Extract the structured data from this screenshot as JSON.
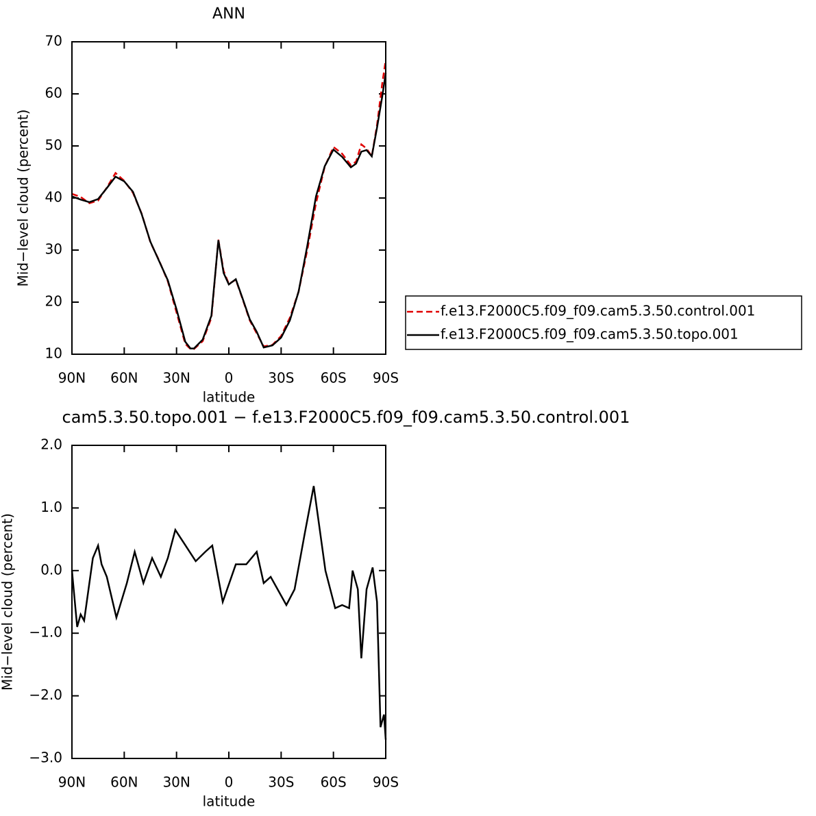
{
  "chart_data": [
    {
      "type": "line",
      "title": "ANN",
      "xlabel": "latitude",
      "ylabel": "Mid−level cloud (percent)",
      "x": [
        90,
        85,
        80,
        75,
        70,
        65,
        60,
        55,
        50,
        45,
        40,
        35,
        30,
        25,
        22,
        20,
        15,
        10,
        6,
        3,
        0,
        -4,
        -8,
        -12,
        -16,
        -20,
        -25,
        -30,
        -35,
        -40,
        -45,
        -50,
        -55,
        -60,
        -65,
        -70,
        -73,
        -76,
        -79,
        -82,
        -85,
        -88,
        -90
      ],
      "series": [
        {
          "name": "f.e13.F2000C5.f09_f09.cam5.3.50.control.001",
          "color": "#e00000",
          "dash": true,
          "values": [
            40.8,
            40.2,
            39,
            39.5,
            42,
            44.8,
            43.3,
            41,
            37,
            31.5,
            28,
            24,
            18,
            12,
            11,
            11,
            12.5,
            17,
            32,
            26,
            23.5,
            24.3,
            20.5,
            16.5,
            14,
            11.5,
            11.8,
            13.5,
            17,
            22,
            30,
            39,
            46,
            49.8,
            48.5,
            46.3,
            47,
            50.3,
            49.5,
            48,
            54,
            62,
            66.5
          ]
        },
        {
          "name": "f.e13.F2000C5.f09_f09.cam5.3.50.topo.001",
          "color": "#000000",
          "dash": false,
          "values": [
            40.3,
            39.7,
            39.2,
            39.8,
            41.9,
            44.1,
            43.2,
            41.2,
            36.9,
            31.6,
            27.9,
            24.2,
            18.6,
            12.4,
            11.1,
            11.1,
            12.8,
            17.4,
            31.9,
            25.6,
            23.4,
            24.4,
            20.6,
            16.7,
            14.3,
            11.3,
            11.7,
            13.2,
            16.5,
            22,
            30.8,
            40.3,
            46.1,
            49.3,
            47.9,
            45.9,
            46.6,
            48.9,
            49.2,
            48,
            53.5,
            59.5,
            64
          ]
        }
      ],
      "xlim": [
        90,
        -90
      ],
      "xticks": [
        {
          "value": 90,
          "label": "90N"
        },
        {
          "value": 60,
          "label": "60N"
        },
        {
          "value": 30,
          "label": "30N"
        },
        0,
        {
          "value": -30,
          "label": "30S"
        },
        {
          "value": -60,
          "label": "60S"
        },
        {
          "value": -90,
          "label": "90S"
        }
      ],
      "ylim": [
        10,
        70
      ],
      "yticks": [
        10,
        20,
        30,
        40,
        50,
        60,
        70
      ],
      "legend": "right"
    },
    {
      "type": "line",
      "title": "cam5.3.50.topo.001 − f.e13.F2000C5.f09_f09.cam5.3.50.control.001",
      "xlabel": "latitude",
      "ylabel": "Mid−level cloud (percent)",
      "x": [
        90,
        87,
        85,
        83,
        78,
        75,
        73,
        70,
        64.5,
        58.5,
        54,
        49,
        44,
        39,
        35,
        30.7,
        26,
        19,
        13.5,
        9.5,
        3.5,
        -4,
        -10,
        -16,
        -20,
        -24,
        -28,
        -33,
        -37.7,
        -43.6,
        -48.7,
        -55.4,
        -61,
        -65,
        -69,
        -71,
        -74,
        -76,
        -79,
        -82.5,
        -85,
        -87,
        -89,
        -90
      ],
      "values": [
        0,
        -0.9,
        -0.7,
        -0.8,
        0.2,
        0.4,
        0.1,
        -0.1,
        -0.75,
        -0.2,
        0.3,
        -0.2,
        0.2,
        -0.1,
        0.2,
        0.65,
        0.45,
        0.15,
        0.3,
        0.4,
        -0.5,
        0.1,
        0.1,
        0.3,
        -0.2,
        -0.1,
        -0.3,
        -0.55,
        -0.3,
        0.6,
        1.35,
        0,
        -0.6,
        -0.55,
        -0.6,
        0,
        -0.3,
        -1.4,
        -0.3,
        0.05,
        -0.5,
        -2.5,
        -2.3,
        -2.7
      ],
      "color": "#000000",
      "xlim": [
        90,
        -90
      ],
      "xticks": [
        {
          "value": 90,
          "label": "90N"
        },
        {
          "value": 60,
          "label": "60N"
        },
        {
          "value": 30,
          "label": "30N"
        },
        0,
        {
          "value": -30,
          "label": "30S"
        },
        {
          "value": -60,
          "label": "60S"
        },
        {
          "value": -90,
          "label": "90S"
        }
      ],
      "ylim": [
        -3,
        2
      ],
      "yticks": [
        {
          "value": -3,
          "label": "−3.0"
        },
        {
          "value": -2,
          "label": "−2.0"
        },
        {
          "value": -1,
          "label": "−1.0"
        },
        {
          "value": 0,
          "label": "0.0"
        },
        {
          "value": 1,
          "label": "1.0"
        },
        {
          "value": 2,
          "label": "2.0"
        }
      ]
    }
  ]
}
